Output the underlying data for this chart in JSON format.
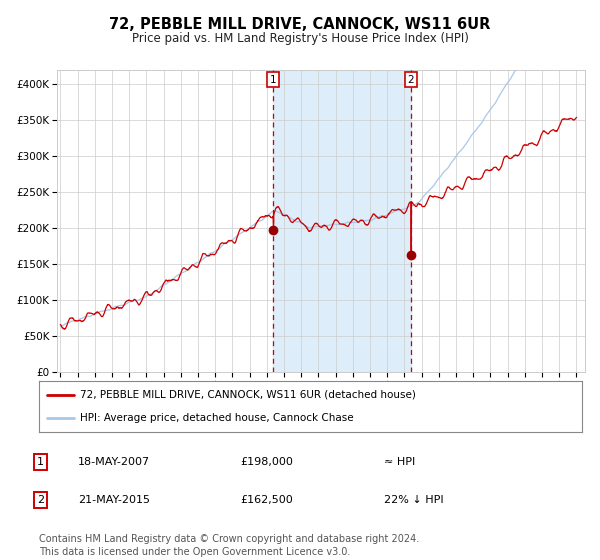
{
  "title": "72, PEBBLE MILL DRIVE, CANNOCK, WS11 6UR",
  "subtitle": "Price paid vs. HM Land Registry's House Price Index (HPI)",
  "title_fontsize": 10.5,
  "subtitle_fontsize": 8.5,
  "background_color": "#ffffff",
  "plot_bg_color": "#ffffff",
  "grid_color": "#cccccc",
  "hpi_line_color": "#a8c8e8",
  "price_line_color": "#cc0000",
  "marker_color": "#990000",
  "shading_color": "#d8eaf8",
  "dashed_line_color": "#cc0000",
  "ylim": [
    0,
    420000
  ],
  "yticks": [
    0,
    50000,
    100000,
    150000,
    200000,
    250000,
    300000,
    350000,
    400000
  ],
  "xstart_year": 1995,
  "xend_year": 2025,
  "event1_year": 2007.38,
  "event1_price": 198000,
  "event1_label": "1",
  "event2_year": 2015.38,
  "event2_price": 162500,
  "event2_label": "2",
  "legend_entry1": "72, PEBBLE MILL DRIVE, CANNOCK, WS11 6UR (detached house)",
  "legend_entry2": "HPI: Average price, detached house, Cannock Chase",
  "annotation1_date": "18-MAY-2007",
  "annotation1_price": "£198,000",
  "annotation1_note": "≈ HPI",
  "annotation2_date": "21-MAY-2015",
  "annotation2_price": "£162,500",
  "annotation2_note": "22% ↓ HPI",
  "footer": "Contains HM Land Registry data © Crown copyright and database right 2024.\nThis data is licensed under the Open Government Licence v3.0.",
  "footer_fontsize": 7
}
